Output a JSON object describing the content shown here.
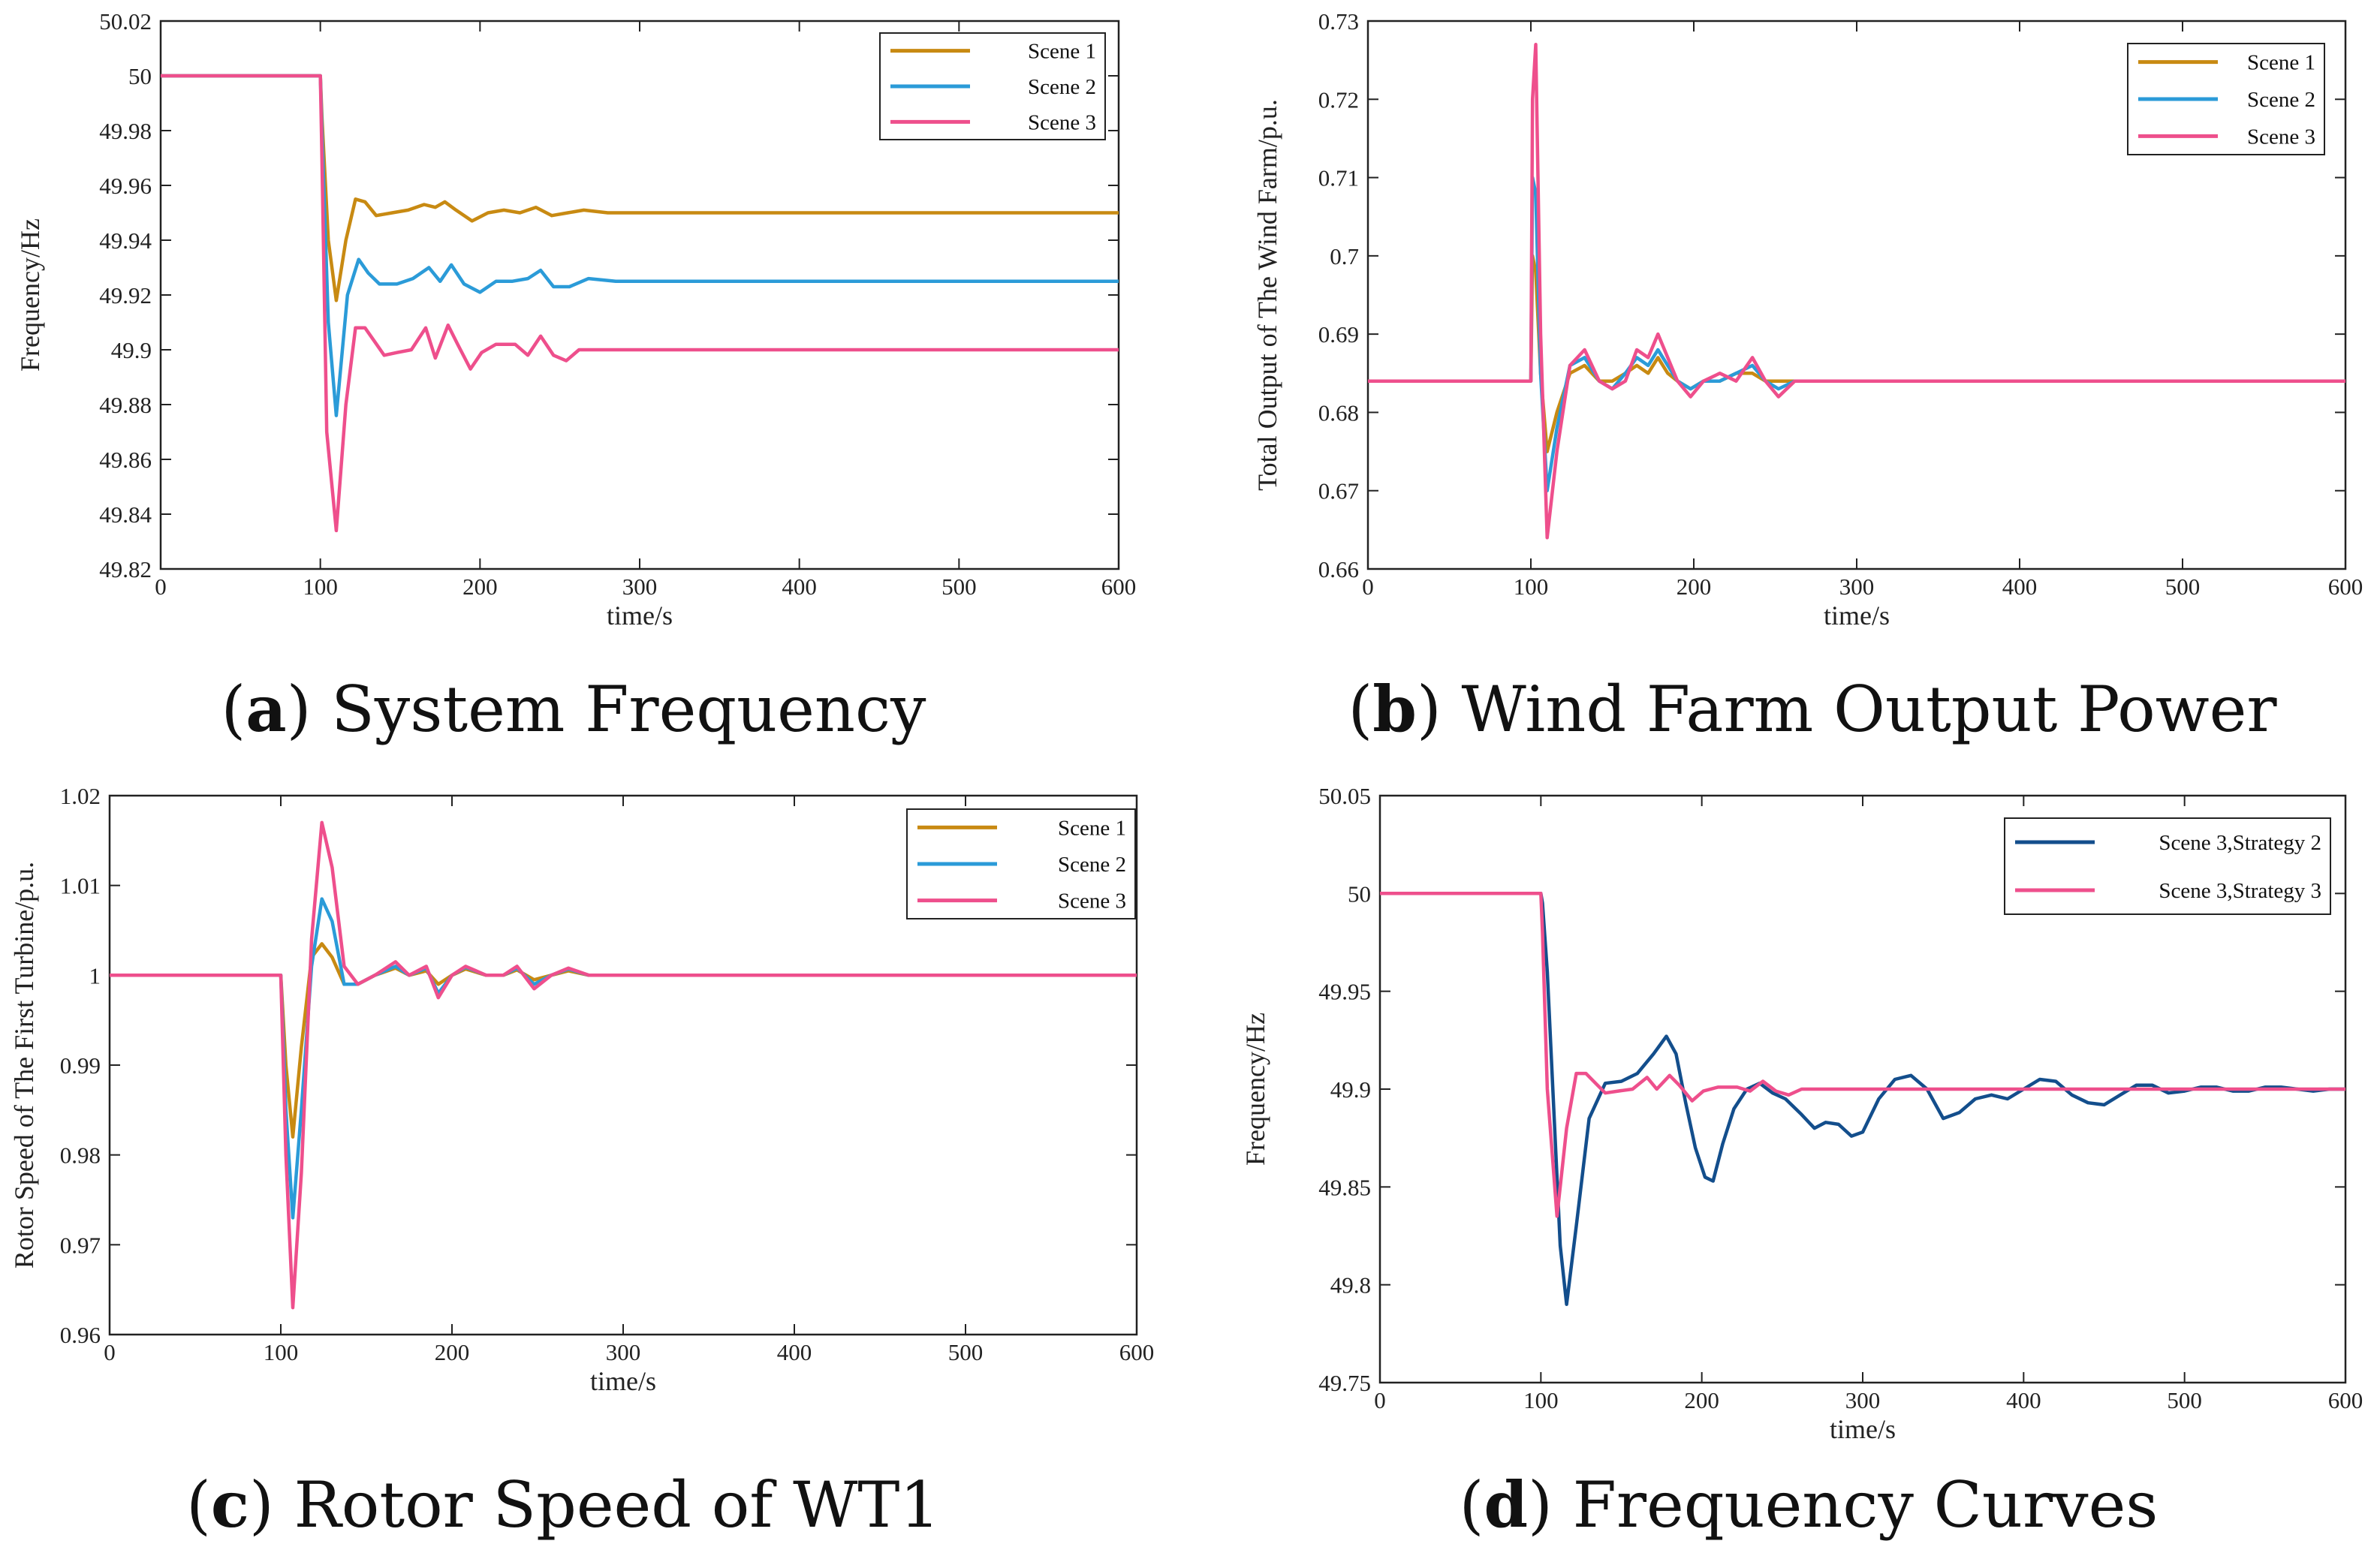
{
  "chart_data": [
    {
      "id": "a",
      "type": "line",
      "caption_letter": "a",
      "caption_text": "System Frequency",
      "xlabel": "time/s",
      "ylabel": "Frequency/Hz",
      "xlim": [
        0,
        600
      ],
      "ylim": [
        49.82,
        50.02
      ],
      "xticks": [
        0,
        100,
        200,
        300,
        400,
        500,
        600
      ],
      "yticks": [
        49.82,
        49.84,
        49.86,
        49.88,
        49.9,
        49.92,
        49.94,
        49.96,
        49.98,
        50,
        50.02
      ],
      "ytick_labels": [
        "49.82",
        "49.84",
        "49.86",
        "49.88",
        "49.9",
        "49.92",
        "49.94",
        "49.96",
        "49.98",
        "50",
        "50.02"
      ],
      "legend_position": "top-right",
      "series": [
        {
          "name": "Scene 1",
          "color": "#C88A12",
          "x": [
            0,
            100,
            101,
            105,
            110,
            116,
            122,
            128,
            135,
            145,
            155,
            165,
            172,
            178,
            185,
            195,
            205,
            215,
            225,
            235,
            245,
            255,
            265,
            280,
            300,
            350,
            600
          ],
          "y": [
            50,
            50,
            49.985,
            49.94,
            49.918,
            49.94,
            49.955,
            49.954,
            49.949,
            49.95,
            49.951,
            49.953,
            49.952,
            49.954,
            49.951,
            49.947,
            49.95,
            49.951,
            49.95,
            49.952,
            49.949,
            49.95,
            49.951,
            49.95,
            49.95,
            49.95,
            49.95
          ]
        },
        {
          "name": "Scene 2",
          "color": "#2B9BD8",
          "x": [
            0,
            100,
            101,
            105,
            110,
            117,
            124,
            130,
            137,
            148,
            158,
            168,
            175,
            182,
            190,
            200,
            210,
            220,
            230,
            238,
            246,
            256,
            268,
            285,
            310,
            600
          ],
          "y": [
            50,
            50,
            49.98,
            49.91,
            49.876,
            49.92,
            49.933,
            49.928,
            49.924,
            49.924,
            49.926,
            49.93,
            49.925,
            49.931,
            49.924,
            49.921,
            49.925,
            49.925,
            49.926,
            49.929,
            49.923,
            49.923,
            49.926,
            49.925,
            49.925,
            49.925
          ]
        },
        {
          "name": "Scene 3",
          "color": "#EE4F8C",
          "x": [
            0,
            100,
            101,
            104,
            110,
            116,
            122,
            128,
            134,
            140,
            148,
            157,
            166,
            172,
            180,
            186,
            194,
            201,
            210,
            222,
            230,
            238,
            246,
            254,
            262,
            275,
            300,
            350,
            600
          ],
          "y": [
            50,
            50,
            49.97,
            49.87,
            49.834,
            49.88,
            49.908,
            49.908,
            49.903,
            49.898,
            49.899,
            49.9,
            49.908,
            49.897,
            49.909,
            49.902,
            49.893,
            49.899,
            49.902,
            49.902,
            49.898,
            49.905,
            49.898,
            49.896,
            49.9,
            49.9,
            49.9,
            49.9,
            49.9
          ]
        }
      ]
    },
    {
      "id": "b",
      "type": "line",
      "caption_letter": "b",
      "caption_text": "Wind Farm Output Power",
      "xlabel": "time/s",
      "ylabel": "Total Output of The Wind Farm/p.u.",
      "xlim": [
        0,
        600
      ],
      "ylim": [
        0.66,
        0.73
      ],
      "xticks": [
        0,
        100,
        200,
        300,
        400,
        500,
        600
      ],
      "yticks": [
        0.66,
        0.67,
        0.68,
        0.69,
        0.7,
        0.71,
        0.72,
        0.73
      ],
      "ytick_labels": [
        "0.66",
        "0.67",
        "0.68",
        "0.69",
        "0.7",
        "0.71",
        "0.72",
        "0.73"
      ],
      "legend_position": "top-right",
      "series": [
        {
          "name": "Scene 1",
          "color": "#C88A12",
          "x": [
            0,
            100,
            101,
            103,
            106,
            110,
            116,
            124,
            133,
            142,
            150,
            158,
            165,
            172,
            178,
            184,
            190,
            198,
            206,
            216,
            226,
            236,
            244,
            252,
            262,
            275,
            300,
            350,
            600
          ],
          "y": [
            0.684,
            0.684,
            0.7,
            0.698,
            0.685,
            0.675,
            0.68,
            0.685,
            0.686,
            0.684,
            0.684,
            0.685,
            0.686,
            0.685,
            0.687,
            0.685,
            0.684,
            0.683,
            0.684,
            0.684,
            0.685,
            0.685,
            0.684,
            0.684,
            0.684,
            0.684,
            0.684,
            0.684,
            0.684
          ]
        },
        {
          "name": "Scene 2",
          "color": "#2B9BD8",
          "x": [
            0,
            100,
            101,
            103,
            106,
            110,
            116,
            124,
            133,
            142,
            150,
            158,
            165,
            172,
            178,
            184,
            190,
            198,
            206,
            216,
            226,
            236,
            244,
            252,
            262,
            275,
            300,
            350,
            600
          ],
          "y": [
            0.684,
            0.684,
            0.71,
            0.708,
            0.685,
            0.67,
            0.678,
            0.686,
            0.687,
            0.684,
            0.683,
            0.685,
            0.687,
            0.686,
            0.688,
            0.686,
            0.684,
            0.683,
            0.684,
            0.684,
            0.685,
            0.686,
            0.684,
            0.683,
            0.684,
            0.684,
            0.684,
            0.684,
            0.684
          ]
        },
        {
          "name": "Scene 3",
          "color": "#EE4F8C",
          "x": [
            0,
            100,
            101,
            103,
            106,
            110,
            116,
            124,
            133,
            142,
            150,
            158,
            165,
            172,
            178,
            184,
            190,
            198,
            206,
            216,
            226,
            236,
            244,
            252,
            262,
            275,
            300,
            350,
            600
          ],
          "y": [
            0.684,
            0.684,
            0.72,
            0.727,
            0.69,
            0.664,
            0.675,
            0.686,
            0.688,
            0.684,
            0.683,
            0.684,
            0.688,
            0.687,
            0.69,
            0.687,
            0.684,
            0.682,
            0.684,
            0.685,
            0.684,
            0.687,
            0.684,
            0.682,
            0.684,
            0.684,
            0.684,
            0.684,
            0.684
          ]
        }
      ]
    },
    {
      "id": "c",
      "type": "line",
      "caption_letter": "c",
      "caption_text": "Rotor Speed of WT1",
      "xlabel": "time/s",
      "ylabel": "Rotor Speed of The First Turbine/p.u.",
      "xlim": [
        0,
        600
      ],
      "ylim": [
        0.96,
        1.02
      ],
      "xticks": [
        0,
        100,
        200,
        300,
        400,
        500,
        600
      ],
      "yticks": [
        0.96,
        0.97,
        0.98,
        0.99,
        1,
        1.01,
        1.02
      ],
      "ytick_labels": [
        "0.96",
        "0.97",
        "0.98",
        "0.99",
        "1",
        "1.01",
        "1.02"
      ],
      "legend_position": "top-right",
      "series": [
        {
          "name": "Scene 1",
          "color": "#C88A12",
          "x": [
            0,
            100,
            103,
            107,
            112,
            118,
            124,
            130,
            137,
            145,
            155,
            167,
            175,
            185,
            192,
            200,
            208,
            220,
            230,
            238,
            248,
            258,
            268,
            280,
            300,
            600
          ],
          "y": [
            1,
            1,
            0.99,
            0.982,
            0.992,
            1.002,
            1.0035,
            1.002,
            0.999,
            0.999,
            1,
            1.0008,
            1,
            1.0005,
            0.999,
            1,
            1.0007,
            1,
            1,
            1.0006,
            0.9995,
            1,
            1.0005,
            1,
            1,
            1
          ]
        },
        {
          "name": "Scene 2",
          "color": "#2B9BD8",
          "x": [
            0,
            100,
            103,
            107,
            112,
            118,
            124,
            130,
            137,
            145,
            155,
            167,
            175,
            185,
            192,
            200,
            208,
            220,
            230,
            238,
            248,
            258,
            268,
            280,
            300,
            600
          ],
          "y": [
            1,
            1,
            0.985,
            0.973,
            0.985,
            1.001,
            1.0085,
            1.006,
            0.999,
            0.999,
            1,
            1.001,
            1,
            1.0008,
            0.998,
            1,
            1.0009,
            1,
            1,
            1.0008,
            0.999,
            1,
            1.0007,
            1,
            1,
            1
          ]
        },
        {
          "name": "Scene 3",
          "color": "#EE4F8C",
          "x": [
            0,
            100,
            103,
            107,
            112,
            118,
            124,
            130,
            137,
            145,
            155,
            167,
            175,
            185,
            192,
            200,
            208,
            220,
            230,
            238,
            248,
            258,
            268,
            280,
            300,
            600
          ],
          "y": [
            1,
            1,
            0.98,
            0.963,
            0.978,
            1.004,
            1.017,
            1.012,
            1.001,
            0.999,
            1,
            1.0015,
            1,
            1.001,
            0.9975,
            1,
            1.001,
            1,
            1,
            1.001,
            0.9985,
            1,
            1.0008,
            1,
            1,
            1
          ]
        }
      ]
    },
    {
      "id": "d",
      "type": "line",
      "caption_letter": "d",
      "caption_text": "Frequency Curves",
      "xlabel": "time/s",
      "ylabel": "Frequency/Hz",
      "xlim": [
        0,
        600
      ],
      "ylim": [
        49.75,
        50.05
      ],
      "xticks": [
        0,
        100,
        200,
        300,
        400,
        500,
        600
      ],
      "yticks": [
        49.75,
        49.8,
        49.85,
        49.9,
        49.95,
        50,
        50.05
      ],
      "ytick_labels": [
        "49.75",
        "49.8",
        "49.85",
        "49.9",
        "49.95",
        "50",
        "50.05"
      ],
      "legend_position": "top-right",
      "series": [
        {
          "name": "Scene 3,Strategy 2",
          "color": "#134E8C",
          "x": [
            0,
            100,
            101,
            104,
            108,
            112,
            116,
            122,
            130,
            140,
            150,
            160,
            170,
            178,
            184,
            190,
            196,
            202,
            207,
            213,
            220,
            228,
            236,
            244,
            252,
            262,
            270,
            277,
            285,
            293,
            300,
            310,
            320,
            330,
            340,
            350,
            360,
            370,
            380,
            390,
            400,
            410,
            420,
            430,
            440,
            450,
            460,
            470,
            480,
            490,
            500,
            510,
            520,
            530,
            540,
            550,
            560,
            570,
            580,
            590,
            600
          ],
          "y": [
            50,
            50,
            49.995,
            49.96,
            49.89,
            49.82,
            49.79,
            49.83,
            49.885,
            49.903,
            49.904,
            49.908,
            49.918,
            49.927,
            49.918,
            49.893,
            49.87,
            49.855,
            49.853,
            49.872,
            49.89,
            49.9,
            49.903,
            49.898,
            49.895,
            49.887,
            49.88,
            49.883,
            49.882,
            49.876,
            49.878,
            49.895,
            49.905,
            49.907,
            49.9,
            49.885,
            49.888,
            49.895,
            49.897,
            49.895,
            49.9,
            49.905,
            49.904,
            49.897,
            49.893,
            49.892,
            49.897,
            49.902,
            49.902,
            49.898,
            49.899,
            49.901,
            49.901,
            49.899,
            49.899,
            49.901,
            49.901,
            49.9,
            49.899,
            49.9,
            49.9
          ]
        },
        {
          "name": "Scene 3,Strategy 3",
          "color": "#EE4F8C",
          "x": [
            0,
            100,
            101,
            104,
            110,
            116,
            122,
            128,
            134,
            140,
            148,
            157,
            166,
            172,
            180,
            186,
            194,
            201,
            210,
            222,
            230,
            238,
            246,
            254,
            262,
            275,
            300,
            350,
            600
          ],
          "y": [
            50,
            50,
            49.98,
            49.9,
            49.835,
            49.88,
            49.908,
            49.908,
            49.903,
            49.898,
            49.899,
            49.9,
            49.906,
            49.9,
            49.907,
            49.902,
            49.894,
            49.899,
            49.901,
            49.901,
            49.899,
            49.904,
            49.899,
            49.897,
            49.9,
            49.9,
            49.9,
            49.9,
            49.9
          ]
        }
      ]
    }
  ]
}
